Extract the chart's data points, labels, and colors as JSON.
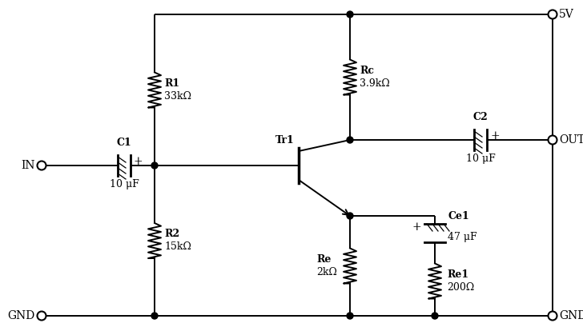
{
  "bg": "#ffffff",
  "lc": "#000000",
  "R1_label": "R1",
  "R1_val": "33kΩ",
  "R2_label": "R2",
  "R2_val": "15kΩ",
  "Rc_label": "Rc",
  "Rc_val": "3.9kΩ",
  "Re_label": "Re",
  "Re_val": "2kΩ",
  "Re1_label": "Re1",
  "Re1_val": "200Ω",
  "C1_label": "C1",
  "C1_val": "10 μF",
  "C2_label": "C2",
  "C2_val": "10 μF",
  "Ce1_label": "Ce1",
  "Ce1_val": "47 μF",
  "Tr1_label": "Tr1",
  "vcc": "5V",
  "in_label": "IN",
  "out_label": "OUT",
  "gnd_label": "GND",
  "xL": 52,
  "xRV": 193,
  "xTRbase": 355,
  "xRC": 437,
  "xCE": 543,
  "xR": 690,
  "yTop": 18,
  "yBase": 207,
  "yCol": 175,
  "yEmi": 270,
  "yGND": 395,
  "font_size": 9,
  "font_size_term": 10
}
